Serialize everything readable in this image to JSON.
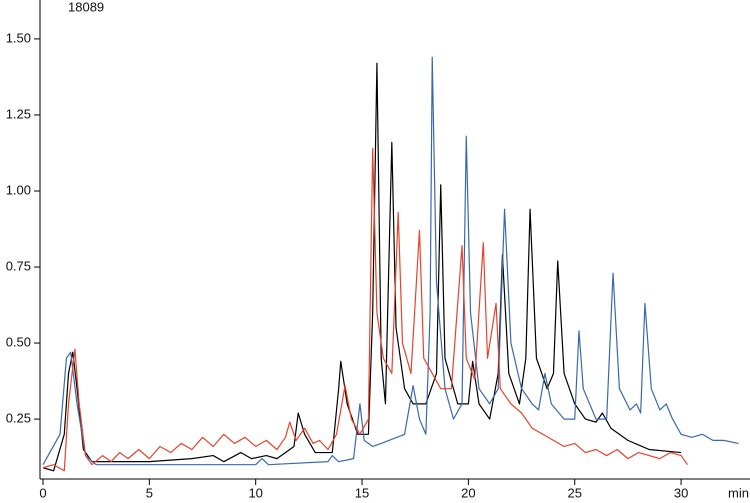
{
  "chart_data": {
    "type": "line",
    "title": "18089",
    "x_label": "min",
    "xlim": [
      0,
      33.24
    ],
    "ylim": [
      0.053,
      1.628
    ],
    "xticks": [
      0,
      5,
      10,
      15,
      20,
      25,
      30
    ],
    "yticks": [
      0.25,
      {
        "value": 0.5,
        "label": "0.50"
      },
      0.75,
      {
        "value": 1,
        "label": "1.00"
      },
      1.25,
      {
        "value": 1.5,
        "label": "1.50"
      }
    ],
    "series": [
      {
        "color": "#000000",
        "x": [
          0,
          0.5,
          1.0,
          1.2,
          1.4,
          1.6,
          1.9,
          2.3,
          5,
          7,
          8,
          8.5,
          9.3,
          9.8,
          10.5,
          11.0,
          11.8,
          12.0,
          12.3,
          12.8,
          13.6,
          13.9,
          14.0,
          14.3,
          14.8,
          15.3,
          15.5,
          15.7,
          15.9,
          16.1,
          16.4,
          16.6,
          17.0,
          17.4,
          18.0,
          18.5,
          18.7,
          18.9,
          19.5,
          20.0,
          20.2,
          20.5,
          21.0,
          21.4,
          21.6,
          21.9,
          22.4,
          22.7,
          22.9,
          23.2,
          23.7,
          24.0,
          24.2,
          24.5,
          25.0,
          25.5,
          26.0,
          26.3,
          26.7,
          27.5,
          28.5,
          30
        ],
        "values": [
          0.09,
          0.08,
          0.2,
          0.4,
          0.47,
          0.35,
          0.15,
          0.11,
          0.11,
          0.12,
          0.13,
          0.11,
          0.14,
          0.12,
          0.13,
          0.12,
          0.16,
          0.27,
          0.2,
          0.14,
          0.14,
          0.35,
          0.44,
          0.3,
          0.2,
          0.2,
          0.6,
          1.42,
          0.45,
          0.3,
          1.16,
          0.55,
          0.35,
          0.3,
          0.3,
          0.4,
          1.02,
          0.45,
          0.3,
          0.3,
          0.44,
          0.3,
          0.25,
          0.4,
          0.79,
          0.4,
          0.3,
          0.45,
          0.94,
          0.45,
          0.35,
          0.4,
          0.77,
          0.4,
          0.3,
          0.25,
          0.24,
          0.27,
          0.22,
          0.18,
          0.15,
          0.14
        ]
      },
      {
        "color": "#3a68b0",
        "x": [
          0,
          0.8,
          1.1,
          1.3,
          1.6,
          2.0,
          2.5,
          10,
          10.3,
          10.6,
          13.4,
          13.6,
          13.9,
          14.6,
          14.9,
          15.1,
          15.5,
          15.9,
          17.0,
          17.4,
          17.7,
          18.0,
          18.2,
          18.3,
          18.5,
          18.9,
          19.3,
          19.7,
          19.9,
          20.1,
          20.5,
          21.0,
          21.4,
          21.7,
          22.0,
          22.5,
          23.0,
          23.3,
          23.6,
          23.9,
          24.5,
          25.0,
          25.2,
          25.4,
          26.0,
          26.5,
          26.8,
          27.1,
          27.6,
          27.9,
          28.1,
          28.3,
          28.6,
          29.0,
          29.3,
          29.6,
          30.0,
          30.5,
          31.0,
          31.5,
          32,
          32.7
        ],
        "values": [
          0.1,
          0.2,
          0.45,
          0.47,
          0.3,
          0.13,
          0.1,
          0.1,
          0.12,
          0.1,
          0.11,
          0.13,
          0.11,
          0.12,
          0.3,
          0.18,
          0.16,
          0.17,
          0.2,
          0.36,
          0.25,
          0.2,
          0.6,
          1.44,
          0.7,
          0.35,
          0.25,
          0.3,
          1.18,
          0.6,
          0.35,
          0.3,
          0.35,
          0.94,
          0.5,
          0.35,
          0.3,
          0.28,
          0.4,
          0.3,
          0.25,
          0.25,
          0.54,
          0.35,
          0.25,
          0.25,
          0.73,
          0.35,
          0.28,
          0.3,
          0.27,
          0.63,
          0.35,
          0.28,
          0.3,
          0.25,
          0.2,
          0.19,
          0.2,
          0.18,
          0.18,
          0.17
        ]
      },
      {
        "color": "#e8422a",
        "x": [
          0,
          0.5,
          1.0,
          1.2,
          1.5,
          1.7,
          2.0,
          2.3,
          2.8,
          3.2,
          3.6,
          4.0,
          4.5,
          5.0,
          5.5,
          6.0,
          6.5,
          7.0,
          7.5,
          8.0,
          8.5,
          9.0,
          9.5,
          10.0,
          10.5,
          11.0,
          11.4,
          11.6,
          11.9,
          12.3,
          12.7,
          13.0,
          13.4,
          13.8,
          14.2,
          14.5,
          14.9,
          15.3,
          15.5,
          15.7,
          16.0,
          16.4,
          16.7,
          16.9,
          17.3,
          17.7,
          17.9,
          18.3,
          18.7,
          19.2,
          19.7,
          19.9,
          20.3,
          20.7,
          20.9,
          21.3,
          21.5,
          22.0,
          22.5,
          23.0,
          23.5,
          24.0,
          24.5,
          25.0,
          25.5,
          26.0,
          26.5,
          27.0,
          27.5,
          28.0,
          28.5,
          29.0,
          29.5,
          30.0,
          30.3
        ],
        "values": [
          0.09,
          0.1,
          0.08,
          0.3,
          0.48,
          0.3,
          0.13,
          0.1,
          0.13,
          0.11,
          0.14,
          0.12,
          0.15,
          0.12,
          0.16,
          0.14,
          0.17,
          0.15,
          0.19,
          0.16,
          0.2,
          0.17,
          0.19,
          0.16,
          0.18,
          0.15,
          0.19,
          0.24,
          0.18,
          0.22,
          0.17,
          0.18,
          0.15,
          0.2,
          0.36,
          0.25,
          0.2,
          0.25,
          1.14,
          0.6,
          0.45,
          0.4,
          0.93,
          0.5,
          0.4,
          0.87,
          0.45,
          0.4,
          0.35,
          0.35,
          0.82,
          0.45,
          0.38,
          0.83,
          0.45,
          0.63,
          0.35,
          0.3,
          0.27,
          0.22,
          0.2,
          0.18,
          0.16,
          0.17,
          0.14,
          0.15,
          0.13,
          0.15,
          0.12,
          0.14,
          0.13,
          0.12,
          0.14,
          0.13,
          0.1
        ]
      }
    ]
  }
}
